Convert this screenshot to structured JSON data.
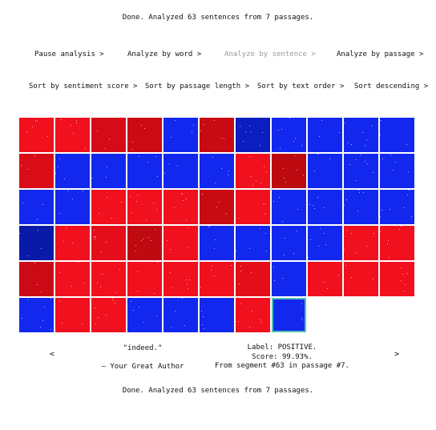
{
  "status": {
    "top": "Done. Analyzed 63 sentences from 7 passages.",
    "bottom": "Done. Analyzed 63 sentences from 7 passages."
  },
  "analysis_options": [
    {
      "label": "Pause analysis >",
      "enabled": true
    },
    {
      "label": "Analyze by word >",
      "enabled": true
    },
    {
      "label": "Analyze by sentence >",
      "enabled": false
    },
    {
      "label": "Analyze by passage >",
      "enabled": true
    }
  ],
  "sort_options": [
    {
      "label": "Sort by sentiment score >"
    },
    {
      "label": "Sort by passage length >"
    },
    {
      "label": "Sort by text order >"
    },
    {
      "label": "Sort descending >"
    }
  ],
  "grid": {
    "columns": 11,
    "cells": [
      "#f0101e",
      "#f0101e",
      "#d50c18",
      "#cb0a14",
      "#1228ee",
      "#c80a12",
      "#0c1ec0",
      "#1228ee",
      "#1228ee",
      "#1228ee",
      "#1228ee",
      "#da0c18",
      "#1228ee",
      "#1228ee",
      "#1228ee",
      "#1228ee",
      "#1228ee",
      "#f0101e",
      "#bc0a10",
      "#1228ee",
      "#1228ee",
      "#1228ee",
      "#1228ee",
      "#1228ee",
      "#f0101e",
      "#f0101e",
      "#f0101e",
      "#c80a12",
      "#f0101e",
      "#1228ee",
      "#1228ee",
      "#1228ee",
      "#1228ee",
      "#0a1aa8",
      "#f0101e",
      "#e40e1a",
      "#c00a12",
      "#f0101e",
      "#1228ee",
      "#1228ee",
      "#1228ee",
      "#1228ee",
      "#f0101e",
      "#f0101e",
      "#cc0a16",
      "#f0101e",
      "#f0101e",
      "#f0101e",
      "#f0101e",
      "#f0101e",
      "#e40e1a",
      "#1228ee",
      "#f0101e",
      "#f0101e",
      "#f0101e",
      "#1228ee",
      "#f0101e",
      "#f0101e",
      "#1228ee",
      "#1228ee",
      "#1228ee",
      "#f0101e",
      "#1228ee"
    ],
    "selected_index": 62
  },
  "nav": {
    "prev": "<",
    "next": ">"
  },
  "quote": {
    "text": "\"indeed.\"",
    "author": "— Your Great Author"
  },
  "info": {
    "label": "Label: POSITIVE.",
    "score": "Score: 99.93%.",
    "segment": "From segment #63 in passage #7."
  }
}
